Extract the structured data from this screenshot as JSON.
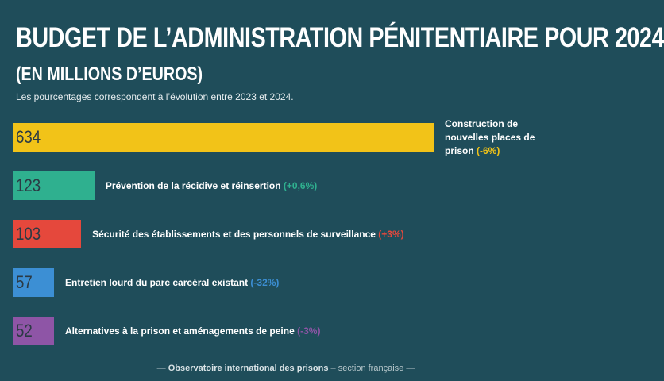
{
  "title": "BUDGET DE L’ADMINISTRATION PÉNITENTIAIRE POUR 2024",
  "subtitle": "(EN MILLIONS D’EUROS)",
  "note": "Les pourcentages correspondent à l’évolution entre 2023 et 2024.",
  "chart_data": {
    "type": "bar",
    "orientation": "horizontal",
    "title": "BUDGET DE L’ADMINISTRATION PÉNITENTIAIRE POUR 2024",
    "subtitle": "(EN MILLIONS D’EUROS)",
    "unit": "millions d’euros",
    "bars": [
      {
        "value": 634,
        "label": "Construction de nouvelles places de prison",
        "change": "(-6%)",
        "color": "#f2c318"
      },
      {
        "value": 123,
        "label": "Prévention de la récidive et réinsertion",
        "change": "(+0,6%)",
        "color": "#2fb08f"
      },
      {
        "value": 103,
        "label": "Sécurité des établissements et des personnels de surveillance",
        "change": "(+3%)",
        "color": "#e5483c"
      },
      {
        "value": 57,
        "label": "Entretien lourd du parc carcéral existant",
        "change": "(-32%)",
        "color": "#3c8fd4"
      },
      {
        "value": 52,
        "label": "Alternatives à la prison et aménagements de peine",
        "change": "(-3%)",
        "color": "#8e55a6"
      }
    ]
  },
  "footer": {
    "dash_left": "—",
    "org": "Observatoire international des prisons",
    "sep": "–",
    "section": "section française",
    "dash_right": "—"
  }
}
